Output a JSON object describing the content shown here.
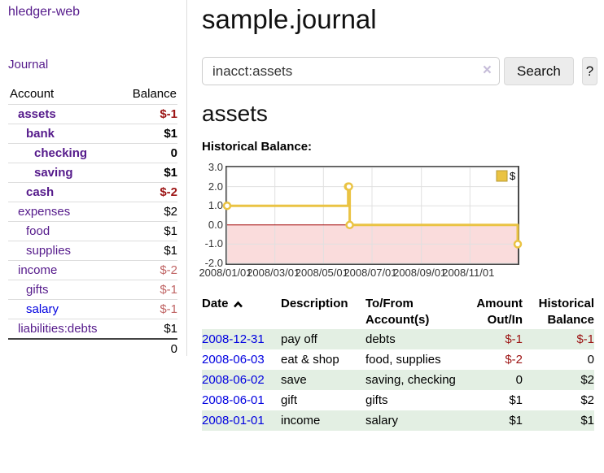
{
  "sidebar": {
    "app_title": "hledger-web",
    "journal_label": "Journal",
    "accounts": {
      "headers": {
        "account": "Account",
        "balance": "Balance"
      },
      "rows": [
        {
          "name": "assets",
          "balance": "$-1",
          "level": 1,
          "bold": true,
          "balance_style": "neg-strong"
        },
        {
          "name": "bank",
          "balance": "$1",
          "level": 2,
          "bold": true,
          "balance_style": ""
        },
        {
          "name": "checking",
          "balance": "0",
          "level": 3,
          "bold": true,
          "balance_style": ""
        },
        {
          "name": "saving",
          "balance": "$1",
          "level": 3,
          "bold": true,
          "balance_style": ""
        },
        {
          "name": "cash",
          "balance": "$-2",
          "level": 2,
          "bold": true,
          "balance_style": "neg-strong"
        },
        {
          "name": "expenses",
          "balance": "$2",
          "level": 1,
          "bold": false,
          "balance_style": ""
        },
        {
          "name": "food",
          "balance": "$1",
          "level": 2,
          "bold": false,
          "balance_style": ""
        },
        {
          "name": "supplies",
          "balance": "$1",
          "level": 2,
          "bold": false,
          "balance_style": ""
        },
        {
          "name": "income",
          "balance": "$-2",
          "level": 1,
          "bold": false,
          "balance_style": "neg-soft"
        },
        {
          "name": "gifts",
          "balance": "$-1",
          "level": 2,
          "bold": false,
          "balance_style": "neg-soft"
        },
        {
          "name": "salary",
          "balance": "$-1",
          "level": 2,
          "bold": false,
          "balance_style": "neg-soft",
          "link_color": "blue"
        },
        {
          "name": "liabilities:debts",
          "balance": "$1",
          "level": 1,
          "bold": false,
          "balance_style": ""
        }
      ],
      "total": "0"
    }
  },
  "main": {
    "title": "sample.journal",
    "search": {
      "value": "inacct:assets",
      "clear_icon": "×",
      "button_label": "Search",
      "help_label": "?"
    },
    "account_heading": "assets",
    "chart_heading": "Historical Balance:"
  },
  "chart_data": {
    "type": "line",
    "title": "Historical Balance",
    "step": true,
    "series": [
      {
        "name": "$",
        "points": [
          [
            "2008-01-01",
            1
          ],
          [
            "2008-06-01",
            2
          ],
          [
            "2008-06-02",
            2
          ],
          [
            "2008-06-03",
            0
          ],
          [
            "2008-12-31",
            -1
          ]
        ]
      }
    ],
    "x_range": [
      "2008-01-01",
      "2008-12-31"
    ],
    "ylim": [
      -2,
      3
    ],
    "yticks": [
      "3.0",
      "2.0",
      "1.0",
      "0.0",
      "-1.0",
      "-2.0"
    ],
    "xticks": [
      "2008/01/01",
      "2008/03/01",
      "2008/05/01",
      "2008/07/01",
      "2008/09/01",
      "2008/11/01"
    ],
    "legend": {
      "label": "$",
      "position": "top-right"
    },
    "grid": true,
    "colors": {
      "line": "#eac343",
      "legend_border": "#b79a31",
      "negative_fill": "#fadcdc",
      "zero_line": "#a00000",
      "gridline": "#e0e0e0",
      "border": "#4a4a4a"
    }
  },
  "register": {
    "headers": {
      "date": "Date",
      "description": "Description",
      "accounts": "To/From Account(s)",
      "amount": "Amount Out/In",
      "balance": "Historical Balance"
    },
    "rows": [
      {
        "date": "2008-12-31",
        "description": "pay off",
        "accounts": "debts",
        "amount": "$-1",
        "amount_neg": true,
        "balance": "$-1",
        "balance_neg": true
      },
      {
        "date": "2008-06-03",
        "description": "eat & shop",
        "accounts": "food, supplies",
        "amount": "$-2",
        "amount_neg": true,
        "balance": "0",
        "balance_neg": false
      },
      {
        "date": "2008-06-02",
        "description": "save",
        "accounts": "saving, checking",
        "amount": "0",
        "amount_neg": false,
        "balance": "$2",
        "balance_neg": false
      },
      {
        "date": "2008-06-01",
        "description": "gift",
        "accounts": "gifts",
        "amount": "$1",
        "amount_neg": false,
        "balance": "$2",
        "balance_neg": false
      },
      {
        "date": "2008-01-01",
        "description": "income",
        "accounts": "salary",
        "amount": "$1",
        "amount_neg": false,
        "balance": "$1",
        "balance_neg": false
      }
    ]
  }
}
